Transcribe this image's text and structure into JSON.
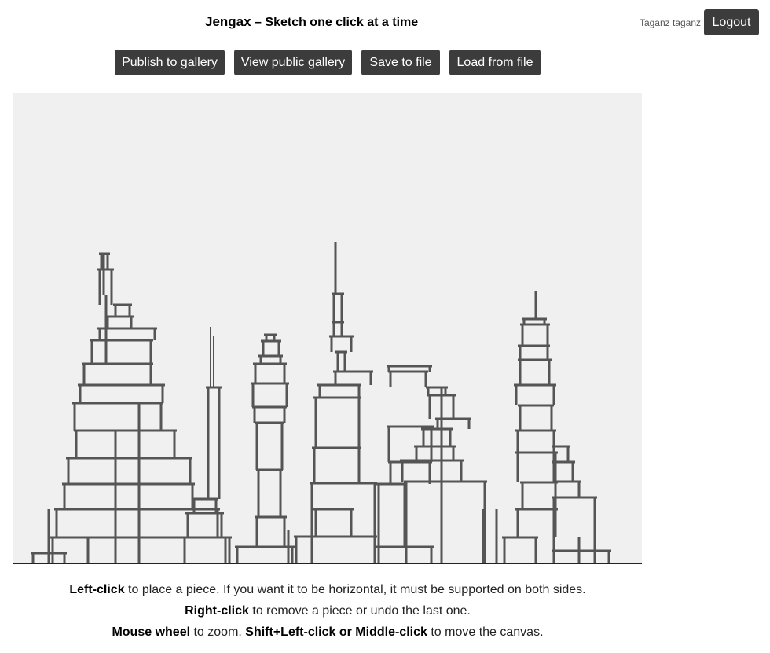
{
  "header": {
    "app_name": "Jengax",
    "separator": " – ",
    "tagline": "Sketch one click at a time",
    "user_name": "Taganz taganz",
    "logout_label": "Logout"
  },
  "toolbar": {
    "publish_label": "Publish to gallery",
    "view_gallery_label": "View public gallery",
    "save_label": "Save to file",
    "load_label": "Load from file"
  },
  "help": {
    "line1_key": "Left-click",
    "line1_rest": " to place a piece. If you want it to be horizontal, it must be supported on both sides.",
    "line2_key": "Right-click",
    "line2_rest": " to remove a piece or undo the last one.",
    "line3_key1": "Mouse wheel",
    "line3_mid": " to zoom. ",
    "line3_key2": "Shift+Left-click or Middle-click",
    "line3_rest": " to move the canvas."
  },
  "colors": {
    "button_bg": "#3c3c3c",
    "canvas_bg": "#f0f0f0",
    "piece_stroke": "#555555"
  }
}
